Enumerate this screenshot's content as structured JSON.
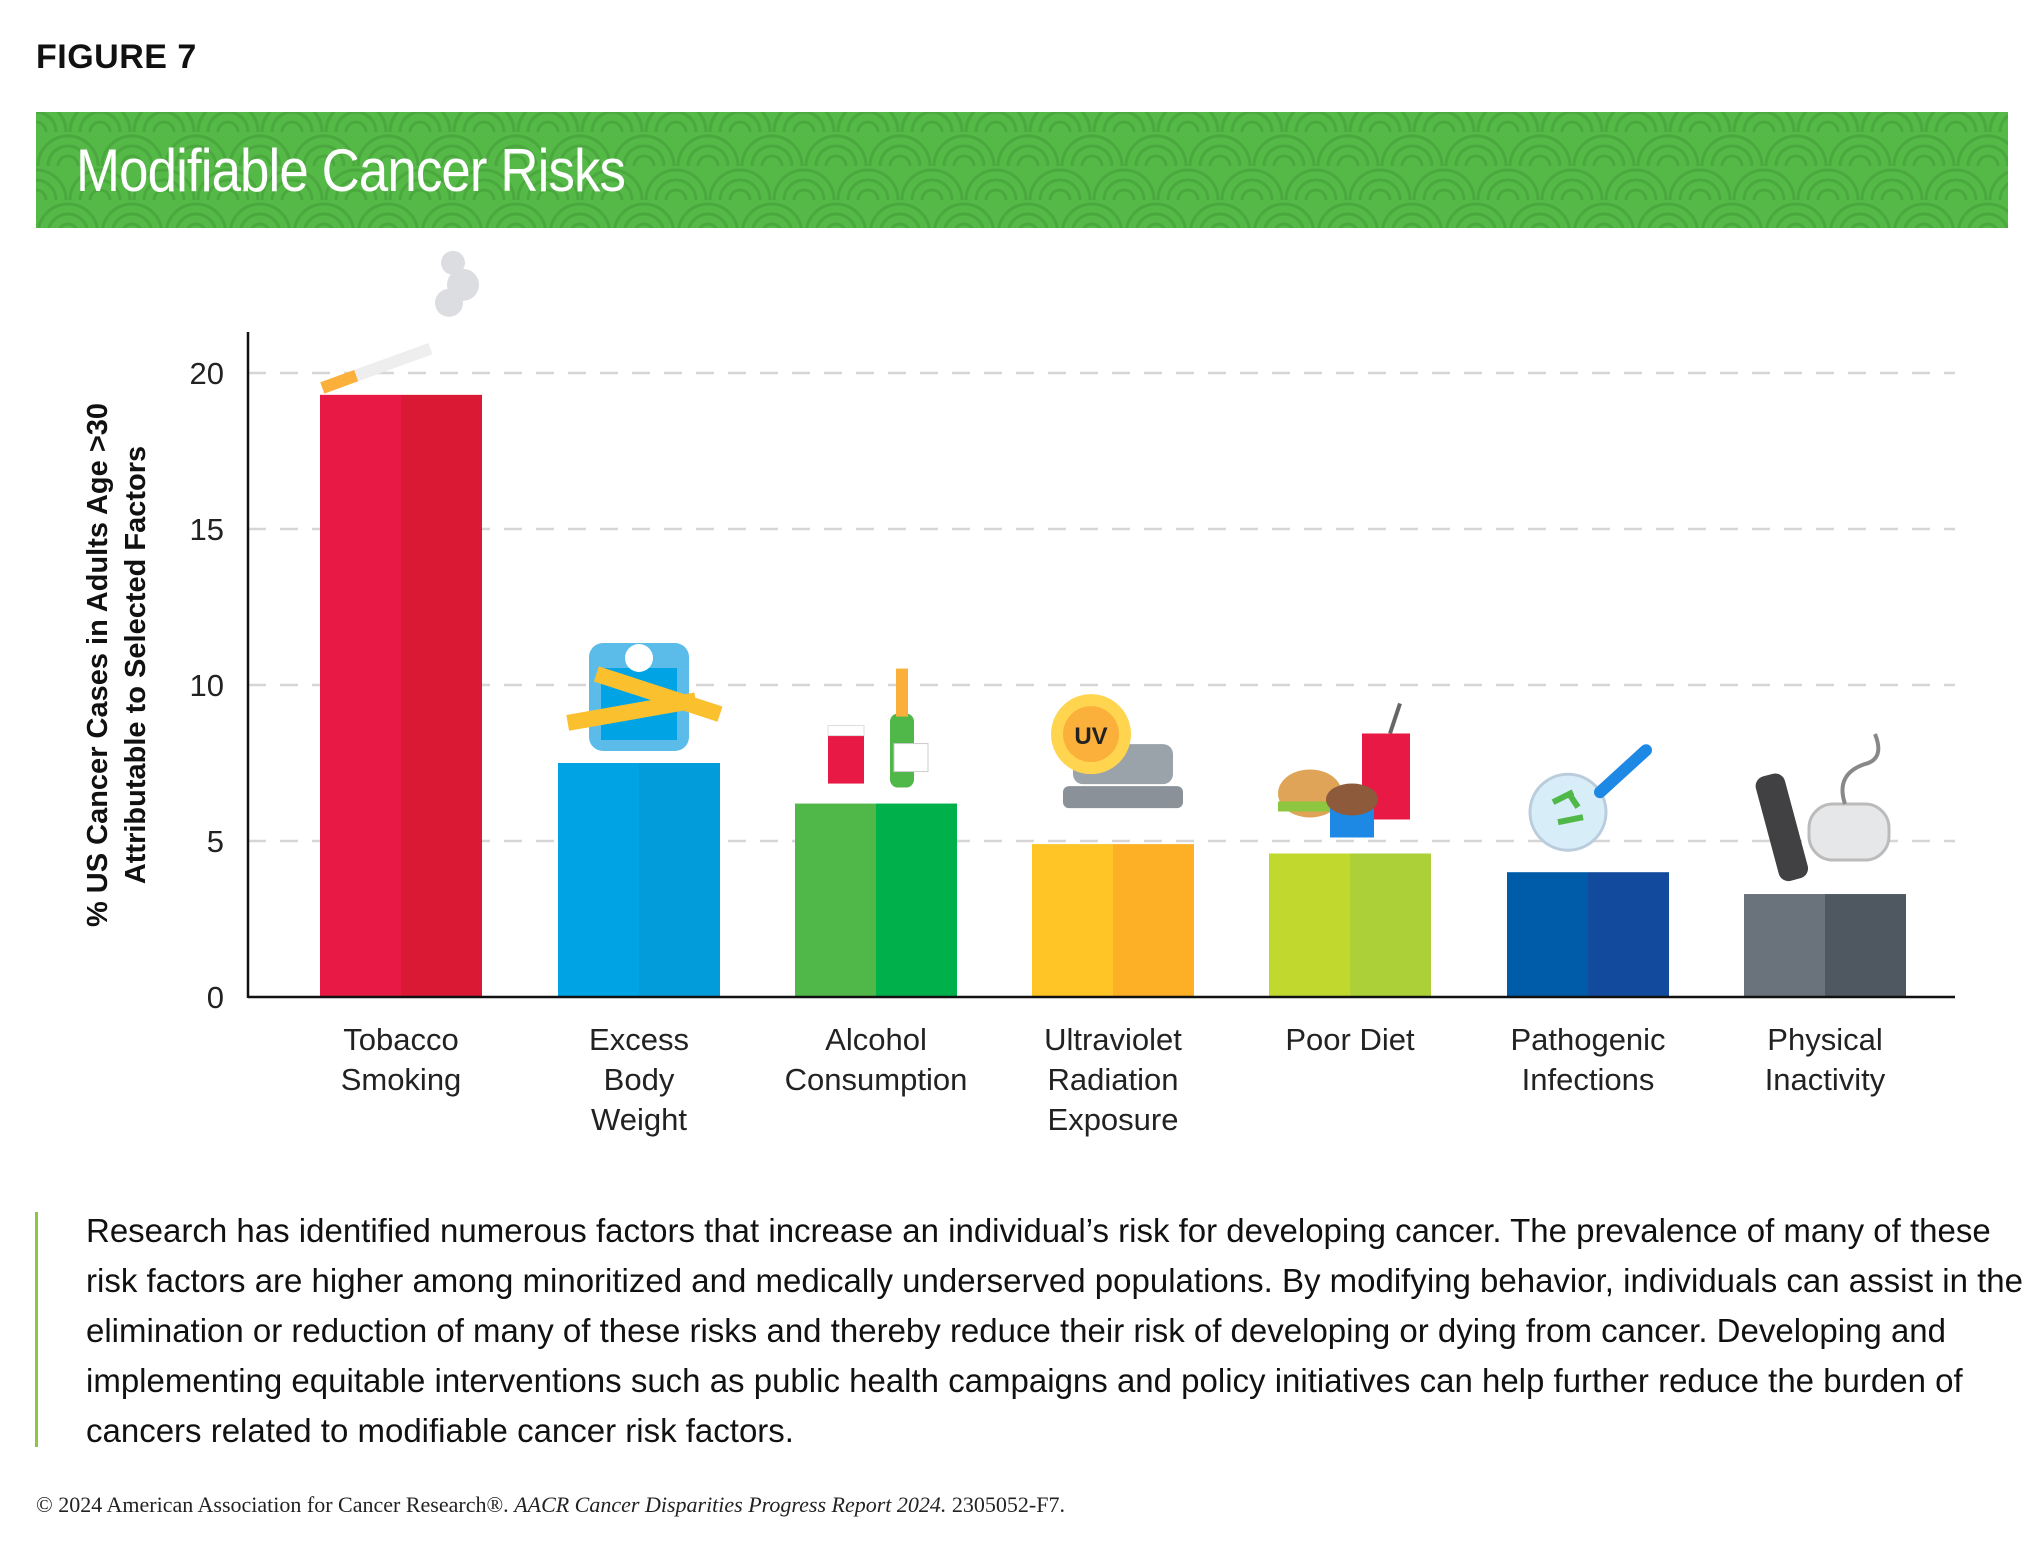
{
  "figure_label": "FIGURE 7",
  "banner_title": "Modifiable Cancer Risks",
  "colors": {
    "banner": "#55b947",
    "rule": "#8dc63f"
  },
  "chart_data": {
    "type": "bar",
    "title": "Modifiable Cancer Risks",
    "xlabel": "",
    "ylabel_lines": [
      "% US Cancer Cases in Adults Age >30",
      "Attributable to Selected Factors"
    ],
    "ylim": [
      0,
      21
    ],
    "yticks": [
      0,
      5,
      10,
      15,
      20
    ],
    "grid": "horizontal dashed",
    "categories": [
      {
        "lines": [
          "Tobacco",
          "Smoking"
        ],
        "icon": "cigarette-icon",
        "color": "#e81a45",
        "color2": "#da1935"
      },
      {
        "lines": [
          "Excess",
          "Body",
          "Weight"
        ],
        "icon": "scale-icon",
        "color": "#00a4e4",
        "color2": "#039cdb"
      },
      {
        "lines": [
          "Alcohol",
          "Consumption"
        ],
        "icon": "alcohol-icon",
        "color": "#50b848",
        "color2": "#00b04a"
      },
      {
        "lines": [
          "Ultraviolet",
          "Radiation",
          "Exposure"
        ],
        "icon": "tanning-bed-icon",
        "color": "#ffc425",
        "color2": "#fdb025"
      },
      {
        "lines": [
          "Poor Diet"
        ],
        "icon": "fast-food-icon",
        "color": "#c1d92f",
        "color2": "#acd037"
      },
      {
        "lines": [
          "Pathogenic",
          "Infections"
        ],
        "icon": "petri-dish-icon",
        "color": "#005ba8",
        "color2": "#124b9e"
      },
      {
        "lines": [
          "Physical",
          "Inactivity"
        ],
        "icon": "remote-controller-icon",
        "color": "#6a727b",
        "color2": "#4f5861"
      }
    ],
    "values": [
      19.3,
      7.5,
      6.2,
      4.9,
      4.6,
      4.0,
      3.3
    ],
    "icon_labels": {
      "uv": "UV"
    }
  },
  "paragraph": "Research has identified numerous factors that increase an individual’s risk for developing cancer. The prevalence of many of these risk factors are higher among minoritized and medically underserved populations. By modifying behavior, individuals can assist in the elimination or reduction of many of these risks and thereby reduce their risk of developing or dying from cancer. Developing and implementing equitable interventions such as public health campaigns and policy initiatives can help further reduce the burden of cancers related to modifiable cancer risk factors.",
  "footer": {
    "prefix": "© 2024 American Association for Cancer Research®. ",
    "report": "AACR Cancer Disparities Progress Report 2024.",
    "code": " 2305052-F7."
  }
}
